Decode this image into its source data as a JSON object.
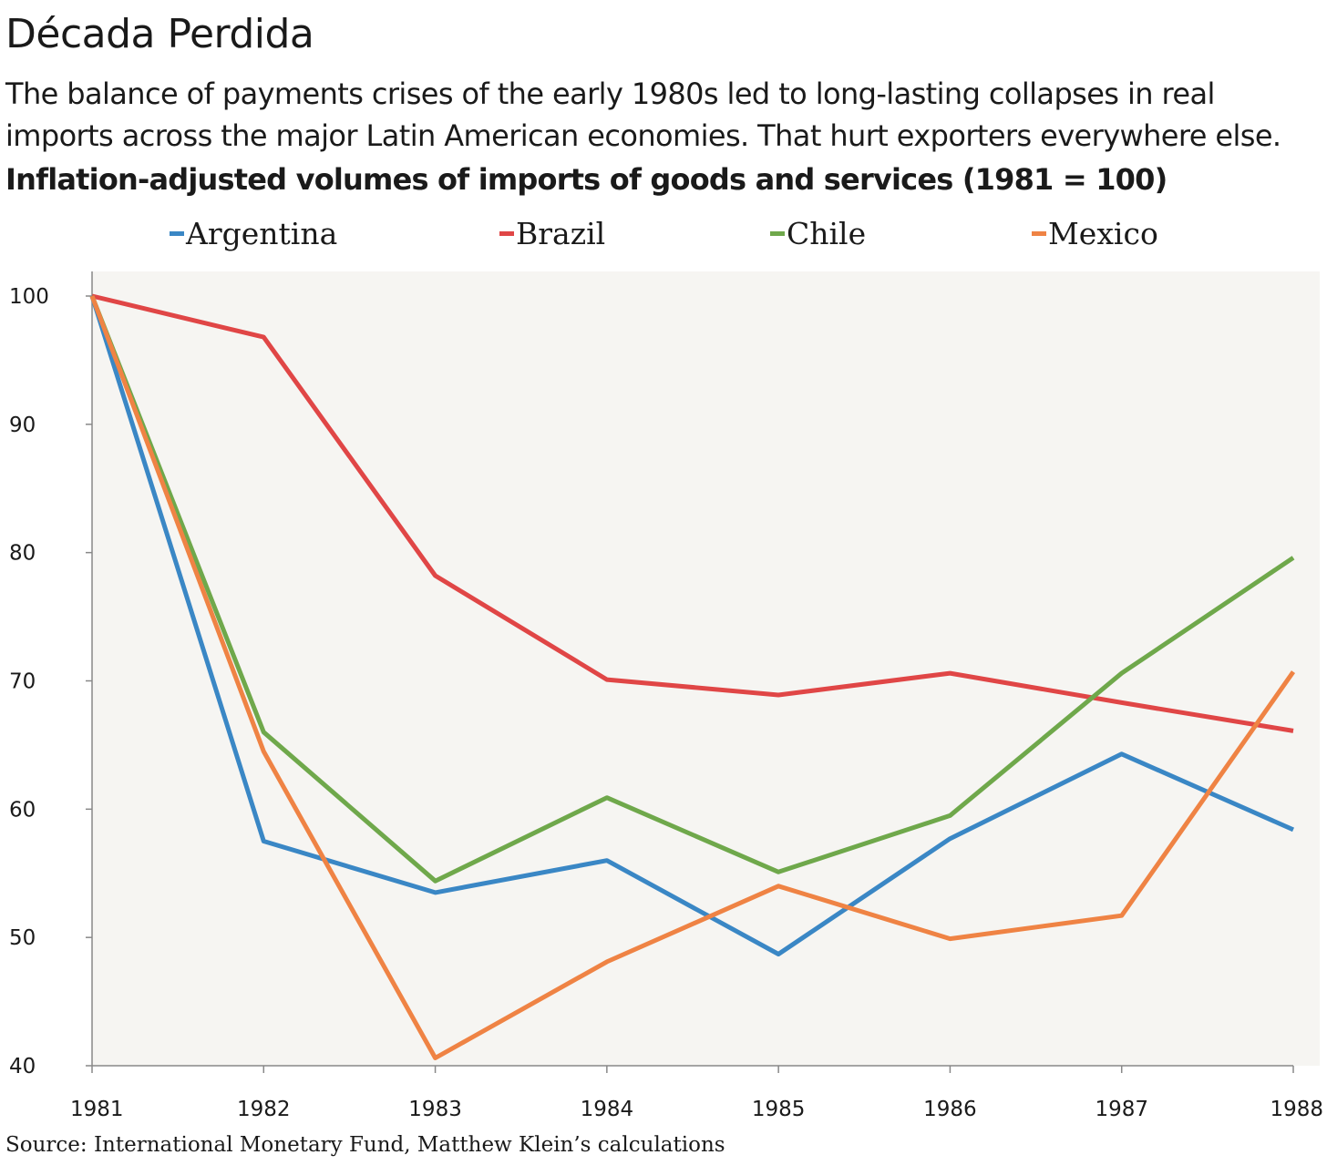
{
  "header": {
    "title": "Década Perdida",
    "subtitle_line1": "The balance of payments crises of the early 1980s led to long-lasting collapses in real",
    "subtitle_line2": "imports across the major Latin American economies. That hurt exporters everywhere else.",
    "chart_title": "Inflation-adjusted volumes of imports of goods and services (1981 = 100)"
  },
  "legend": [
    {
      "name": "Argentina",
      "color": "#3a87c5"
    },
    {
      "name": "Brazil",
      "color": "#e04646"
    },
    {
      "name": "Chile",
      "color": "#6fa84b"
    },
    {
      "name": "Mexico",
      "color": "#ef8344"
    }
  ],
  "source": "Source: International Monetary Fund, Matthew Klein’s calculations",
  "chart_data": {
    "type": "line",
    "title": "Inflation-adjusted volumes of imports of goods and services (1981 = 100)",
    "xlabel": "",
    "ylabel": "",
    "x": [
      "1981",
      "1982",
      "1983",
      "1984",
      "1985",
      "1986",
      "1987",
      "1988"
    ],
    "ylim": [
      40,
      100
    ],
    "yticks": [
      "40",
      "50",
      "60",
      "70",
      "80",
      "90",
      "100"
    ],
    "grid": false,
    "legend_position": "top",
    "background": "#f6f5f2",
    "series": [
      {
        "name": "Argentina",
        "color": "#3a87c5",
        "values": [
          100,
          57.5,
          53.5,
          56,
          48.7,
          57.7,
          64.3,
          58.4
        ]
      },
      {
        "name": "Brazil",
        "color": "#e04646",
        "values": [
          100,
          96.8,
          78.2,
          70.1,
          68.9,
          70.6,
          68.3,
          66.1
        ]
      },
      {
        "name": "Chile",
        "color": "#6fa84b",
        "values": [
          100,
          66,
          54.4,
          60.9,
          55.1,
          59.5,
          70.6,
          79.6
        ]
      },
      {
        "name": "Mexico",
        "color": "#ef8344",
        "values": [
          100,
          64.5,
          40.6,
          48.1,
          54,
          49.9,
          51.7,
          70.7
        ]
      }
    ]
  }
}
